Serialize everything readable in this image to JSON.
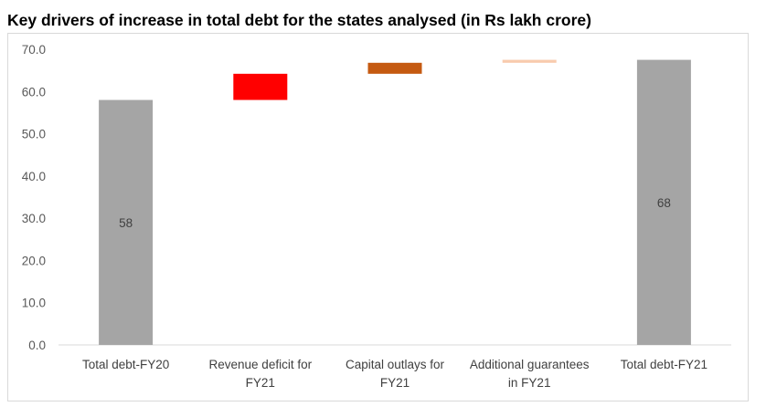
{
  "chart_data": {
    "type": "bar",
    "subtype": "waterfall",
    "title": "Key drivers of increase in total debt for the states analysed (in Rs lakh crore)",
    "xlabel": "",
    "ylabel": "",
    "ylim": [
      0,
      70
    ],
    "ytick_labels": [
      "0.0",
      "10.0",
      "20.0",
      "30.0",
      "40.0",
      "50.0",
      "60.0",
      "70.0"
    ],
    "grid": false,
    "legend": "none",
    "categories": [
      [
        "Total debt-FY20"
      ],
      [
        "Revenue deficit for",
        "FY21"
      ],
      [
        "Capital outlays for",
        "FY21"
      ],
      [
        "Additional guarantees",
        "in FY21"
      ],
      [
        "Total debt-FY21"
      ]
    ],
    "bars": [
      {
        "base": 0,
        "value": 58,
        "color": "#a5a5a5",
        "label": "58"
      },
      {
        "base": 58,
        "value": 6.2,
        "color": "#ff0000",
        "label": ""
      },
      {
        "base": 64.2,
        "value": 2.6,
        "color": "#c55a11",
        "label": ""
      },
      {
        "base": 66.8,
        "value": 0.7,
        "color": "#f8cbad",
        "label": ""
      },
      {
        "base": 0,
        "value": 67.5,
        "color": "#a5a5a5",
        "label": "68"
      }
    ]
  }
}
